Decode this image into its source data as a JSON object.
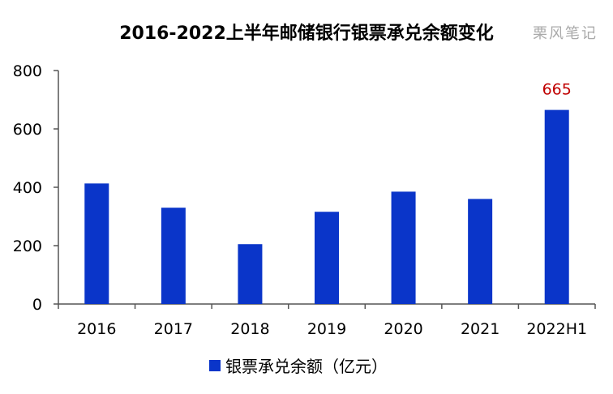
{
  "watermark": "栗风笔记",
  "colors": {
    "bar": "#0a35c9",
    "label": "#c00000",
    "axis": "#555555"
  },
  "chart_data": {
    "type": "bar",
    "title": "2016-2022上半年邮储银行银票承兑余额变化",
    "categories": [
      "2016",
      "2017",
      "2018",
      "2019",
      "2020",
      "2021",
      "2022H1"
    ],
    "series": [
      {
        "name": "银票承兑余额（亿元）",
        "values": [
          413,
          330,
          205,
          316,
          385,
          360,
          665
        ]
      }
    ],
    "data_labels": [
      {
        "category": "2022H1",
        "text": "665"
      }
    ],
    "ylim": [
      0,
      800
    ],
    "yticks": [
      0,
      200,
      400,
      600,
      800
    ],
    "grid": false,
    "legend": "bottom-center"
  }
}
